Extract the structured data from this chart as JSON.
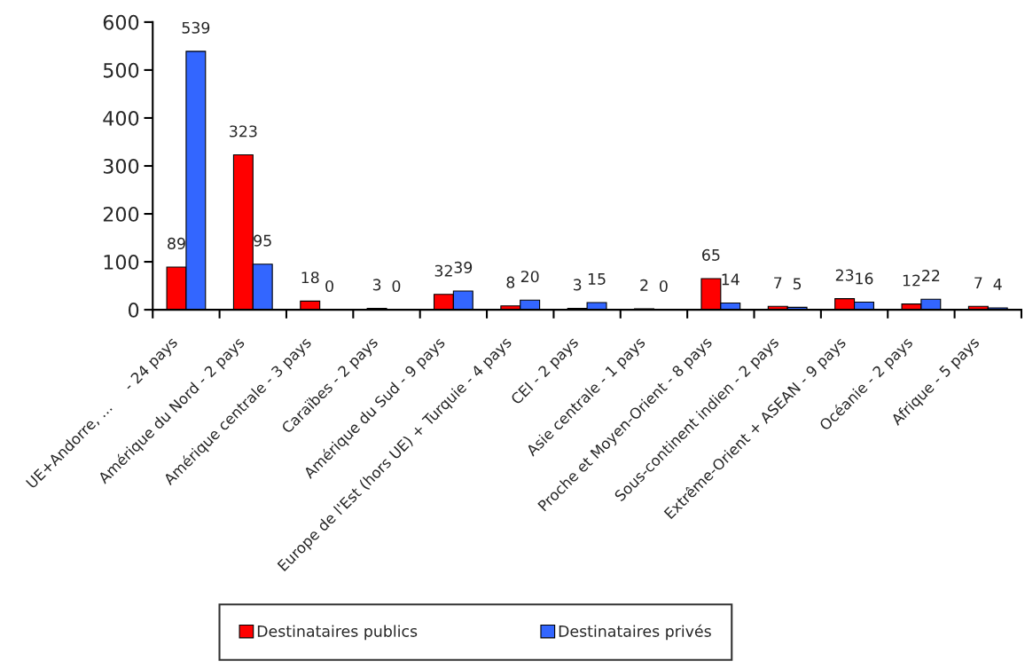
{
  "chart_data": {
    "type": "bar",
    "categories": [
      "UE+Andorre, ...     - 24 pays",
      "Amérique du Nord - 2 pays",
      "Amérique centrale - 3 pays",
      "Caraïbes - 2 pays",
      "Amérique du Sud - 9 pays",
      "Europe de l'Est (hors UE) + Turquie - 4 pays",
      "CEI - 2 pays",
      "Asie centrale - 1 pays",
      "Proche et Moyen-Orient - 8 pays",
      "Sous-continent indien - 2 pays",
      "Extrême-Orient + ASEAN - 9 pays",
      "Océanie - 2 pays",
      "Afrique - 5 pays"
    ],
    "series": [
      {
        "name": "Destinataires publics",
        "color": "#ff0000",
        "values": [
          89,
          323,
          18,
          3,
          32,
          8,
          3,
          2,
          65,
          7,
          23,
          12,
          7
        ]
      },
      {
        "name": "Destinataires privés",
        "color": "#3366ff",
        "values": [
          539,
          95,
          0,
          0,
          39,
          20,
          15,
          0,
          14,
          5,
          16,
          22,
          4
        ]
      }
    ],
    "ylim": [
      0,
      600
    ],
    "yticks": [
      0,
      100,
      200,
      300,
      400,
      500,
      600
    ],
    "data_labels": true,
    "legend": "bottom",
    "grid": false
  }
}
